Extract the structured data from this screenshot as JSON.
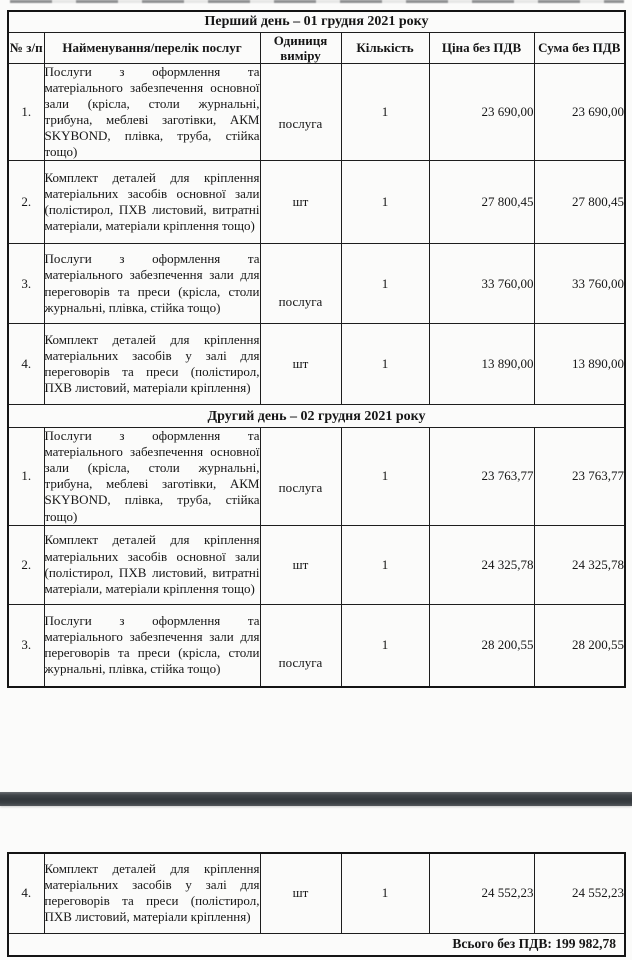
{
  "doc": {
    "columns": [
      "№ з/п",
      "Найменування/перелік послуг",
      "Одиниця виміру",
      "Кількість",
      "Ціна без ПДВ",
      "Сума без ПДВ"
    ],
    "sections": [
      {
        "title": "Перший день – 01 грудня 2021 року",
        "rows": [
          {
            "num": "1.",
            "name": "Послуги з оформлення та матеріального забезпечення основної зали (крісла, столи журнальні, трибуна, меблеві заготівки, АКМ SKYBOND, плівка, труба, стійка тощо)",
            "unit": "послуга",
            "qty": "1",
            "price": "23 690,00",
            "sum": "23 690,00"
          },
          {
            "num": "2.",
            "name": "Комплект деталей для кріплення матеріальних засобів основної зали (полістирол, ПХВ листовий, витратні матеріали, матеріали кріплення тощо)",
            "unit": "шт",
            "qty": "1",
            "price": "27 800,45",
            "sum": "27 800,45"
          },
          {
            "num": "3.",
            "name": "Послуги з оформлення та матеріального забезпечення зали для переговорів та преси (крісла, столи журнальні, плівка, стійка тощо)",
            "unit": "послуга",
            "qty": "1",
            "price": "33 760,00",
            "sum": "33 760,00"
          },
          {
            "num": "4.",
            "name": "Комплект деталей для кріплення матеріальних засобів у залі для переговорів та преси (полістирол, ПХВ листовий, матеріали кріплення)",
            "unit": "шт",
            "qty": "1",
            "price": "13 890,00",
            "sum": "13 890,00"
          }
        ]
      },
      {
        "title": "Другий день – 02 грудня 2021 року",
        "rows": [
          {
            "num": "1.",
            "name": "Послуги з оформлення та матеріального забезпечення основної зали (крісла, столи журнальні, трибуна, меблеві заготівки, АКМ SKYBOND, плівка, труба, стійка тощо)",
            "unit": "послуга",
            "qty": "1",
            "price": "23 763,77",
            "sum": "23 763,77"
          },
          {
            "num": "2.",
            "name": "Комплект деталей для кріплення матеріальних засобів основної зали (полістирол, ПХВ листовий, витратні матеріали, матеріали кріплення тощо)",
            "unit": "шт",
            "qty": "1",
            "price": "24 325,78",
            "sum": "24 325,78"
          },
          {
            "num": "3.",
            "name": "Послуги з оформлення та матеріального забезпечення зали для переговорів та преси (крісла, столи журнальні, плівка, стійка тощо)",
            "unit": "послуга",
            "qty": "1",
            "price": "28 200,55",
            "sum": "28 200,55"
          }
        ]
      }
    ],
    "fragment_rows": [
      {
        "num": "4.",
        "name": "Комплект деталей для кріплення матеріальних засобів у залі для переговорів та преси (полістирол, ПХВ листовий, матеріали кріплення)",
        "unit": "шт",
        "qty": "1",
        "price": "24 552,23",
        "sum": "24 552,23"
      }
    ],
    "total_label": "Всього без ПДВ: 199 982,78"
  }
}
